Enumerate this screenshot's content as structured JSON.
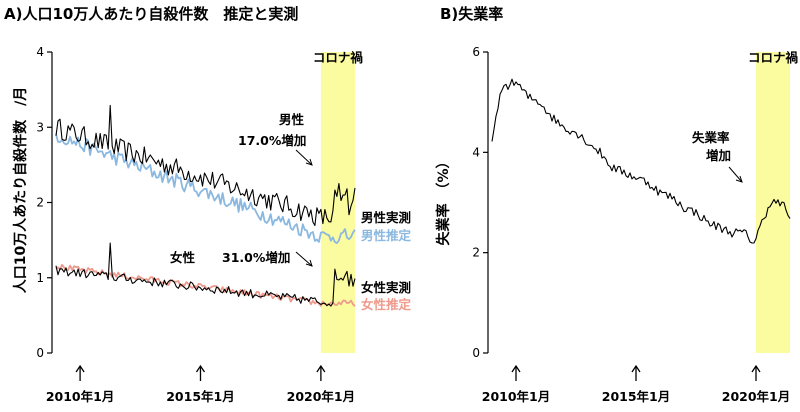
{
  "chart_data": [
    {
      "type": "line",
      "title": "A)人口10万人あたり自殺件数　推定と実測",
      "ylabel": "人口10万人あたり自殺件数　/月",
      "xlabel": "",
      "ylim": [
        0,
        4
      ],
      "yticks": [
        0,
        1,
        2,
        3,
        4
      ],
      "x_range": [
        "2008-11",
        "2021-06"
      ],
      "x_tick_labels": [
        "2010年1月",
        "2015年1月",
        "2020年1月"
      ],
      "x_tick_values": [
        "2010-01",
        "2015-01",
        "2020-01"
      ],
      "shaded_region": {
        "label": "コロナ禍",
        "start": "2020-01",
        "end": "2021-06",
        "color": "#fbfba0"
      },
      "grid": false,
      "series": [
        {
          "name": "男性実測",
          "color": "#000000",
          "start": "2009-01",
          "end": "2021-06",
          "approx_level": "3.0 → 1.8, rising to ~2.1 after 2020"
        },
        {
          "name": "男性推定",
          "color": "#8ab8e0",
          "start": "2009-01",
          "end": "2021-06",
          "approx_level": "2.9 → 1.5"
        },
        {
          "name": "女性実測",
          "color": "#000000",
          "start": "2009-01",
          "end": "2021-06",
          "approx_level": "1.1 → 0.65, rising to ~1.2 after 2020"
        },
        {
          "name": "女性推定",
          "color": "#ee9a8c",
          "start": "2009-01",
          "end": "2021-06",
          "approx_level": "1.15 → 0.65"
        }
      ],
      "annotations": [
        {
          "text": "男性",
          "text2": "17.0%増加"
        },
        {
          "text": "女性"
        },
        {
          "text": "31.0%増加"
        }
      ],
      "shaded_label": "コロナ禍"
    },
    {
      "type": "line",
      "title": "B)失業率",
      "ylabel": "失業率　（%）",
      "xlabel": "",
      "ylim": [
        0,
        6
      ],
      "yticks": [
        0,
        2,
        4,
        6
      ],
      "x_range": [
        "2008-11",
        "2021-06"
      ],
      "x_tick_labels": [
        "2010年1月",
        "2015年1月",
        "2020年1月"
      ],
      "x_tick_values": [
        "2010-01",
        "2015-01",
        "2020-01"
      ],
      "shaded_region": {
        "label": "コロナ禍",
        "start": "2020-01",
        "end": "2021-06",
        "color": "#fbfba0"
      },
      "grid": false,
      "series": [
        {
          "color": "#000000",
          "x": [
            "2009-01",
            "2009-06",
            "2010-01",
            "2010-07",
            "2011-01",
            "2011-07",
            "2012-01",
            "2012-07",
            "2013-01",
            "2013-07",
            "2014-01",
            "2014-07",
            "2015-01",
            "2015-07",
            "2016-01",
            "2016-07",
            "2017-01",
            "2017-07",
            "2018-01",
            "2018-07",
            "2019-01",
            "2019-07",
            "2019-12",
            "2020-04",
            "2020-08",
            "2020-12",
            "2021-04",
            "2021-06"
          ],
          "values": [
            4.2,
            5.3,
            5.4,
            5.1,
            5.0,
            4.7,
            4.5,
            4.4,
            4.2,
            4.0,
            3.7,
            3.6,
            3.5,
            3.4,
            3.2,
            3.1,
            2.9,
            2.8,
            2.6,
            2.5,
            2.4,
            2.4,
            2.2,
            2.6,
            3.0,
            3.0,
            2.9,
            2.6
          ]
        }
      ],
      "annotations": [
        {
          "text": "失業率",
          "text2": "増加"
        }
      ],
      "shaded_label": "コロナ禍"
    }
  ]
}
